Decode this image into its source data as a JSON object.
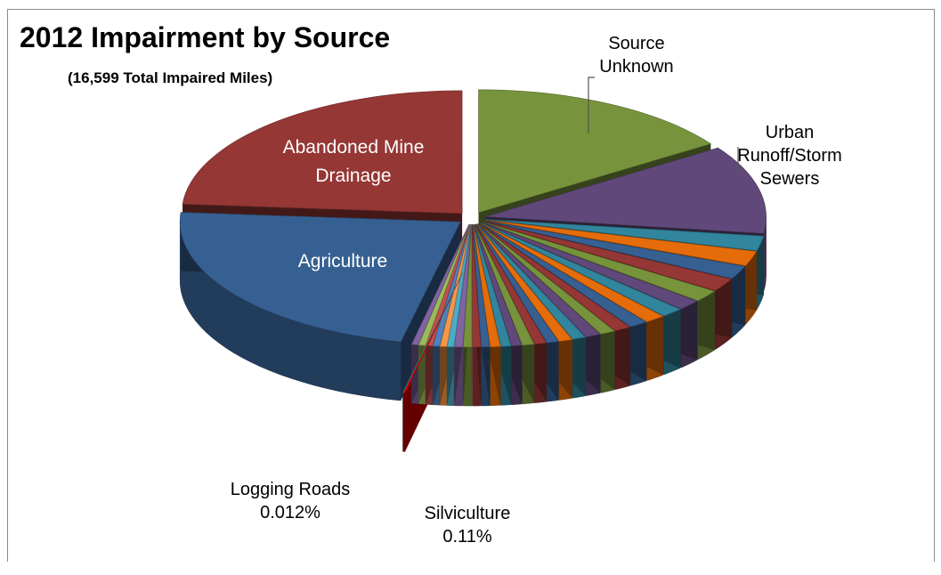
{
  "chart_data": {
    "type": "pie",
    "title": "2012 Impairment by Source",
    "subtitle": "(16,599 Total Impaired Miles)",
    "slices": [
      {
        "label": "Source Unknown",
        "value": 16.0,
        "color": "#77933c"
      },
      {
        "label": "Urban Runoff/Storm Sewers",
        "value": 12.0,
        "color": "#60497a"
      },
      {
        "label": "",
        "value": 2.0,
        "color": "#31859c"
      },
      {
        "label": "",
        "value": 2.0,
        "color": "#e46c0a"
      },
      {
        "label": "",
        "value": 1.8,
        "color": "#376092"
      },
      {
        "label": "",
        "value": 1.8,
        "color": "#953735"
      },
      {
        "label": "",
        "value": 1.6,
        "color": "#77933c"
      },
      {
        "label": "",
        "value": 1.4,
        "color": "#60497a"
      },
      {
        "label": "",
        "value": 1.3,
        "color": "#31859c"
      },
      {
        "label": "",
        "value": 1.2,
        "color": "#e46c0a"
      },
      {
        "label": "",
        "value": 1.1,
        "color": "#376092"
      },
      {
        "label": "",
        "value": 1.0,
        "color": "#953735"
      },
      {
        "label": "",
        "value": 0.9,
        "color": "#77933c"
      },
      {
        "label": "",
        "value": 0.9,
        "color": "#60497a"
      },
      {
        "label": "",
        "value": 0.8,
        "color": "#31859c"
      },
      {
        "label": "",
        "value": 0.8,
        "color": "#e46c0a"
      },
      {
        "label": "",
        "value": 0.7,
        "color": "#376092"
      },
      {
        "label": "",
        "value": 0.7,
        "color": "#953735"
      },
      {
        "label": "",
        "value": 0.7,
        "color": "#77933c"
      },
      {
        "label": "",
        "value": 0.6,
        "color": "#60497a"
      },
      {
        "label": "",
        "value": 0.6,
        "color": "#31859c"
      },
      {
        "label": "",
        "value": 0.6,
        "color": "#e46c0a"
      },
      {
        "label": "",
        "value": 0.5,
        "color": "#376092"
      },
      {
        "label": "",
        "value": 0.5,
        "color": "#953735"
      },
      {
        "label": "",
        "value": 0.5,
        "color": "#77933c"
      },
      {
        "label": "",
        "value": 0.5,
        "color": "#8064a2"
      },
      {
        "label": "",
        "value": 0.4,
        "color": "#4bacc6"
      },
      {
        "label": "",
        "value": 0.4,
        "color": "#f79646"
      },
      {
        "label": "",
        "value": 0.4,
        "color": "#4f81bd"
      },
      {
        "label": "",
        "value": 0.4,
        "color": "#c0504d"
      },
      {
        "label": "",
        "value": 0.4,
        "color": "#9bbb59"
      },
      {
        "label": "",
        "value": 0.4,
        "color": "#8064a2"
      },
      {
        "label": "Silviculture",
        "value": 0.11,
        "value_label": "0.11%",
        "color": "#e00000"
      },
      {
        "label": "Logging Roads",
        "value": 0.012,
        "value_label": "0.012%",
        "color": "#1fc8c8"
      },
      {
        "label": "Agriculture",
        "value": 23.5,
        "color": "#376092"
      },
      {
        "label": "Abandoned Mine Drainage",
        "value": 24.5,
        "color": "#953735"
      }
    ],
    "annotations": {
      "source_unknown": "Source Unknown",
      "urban_runoff": "Urban Runoff/Storm Sewers",
      "abandoned_mine": "Abandoned Mine Drainage",
      "agriculture": "Agriculture",
      "logging_roads": "Logging Roads",
      "logging_roads_pct": "0.012%",
      "silviculture": "Silviculture",
      "silviculture_pct": "0.11%"
    }
  }
}
